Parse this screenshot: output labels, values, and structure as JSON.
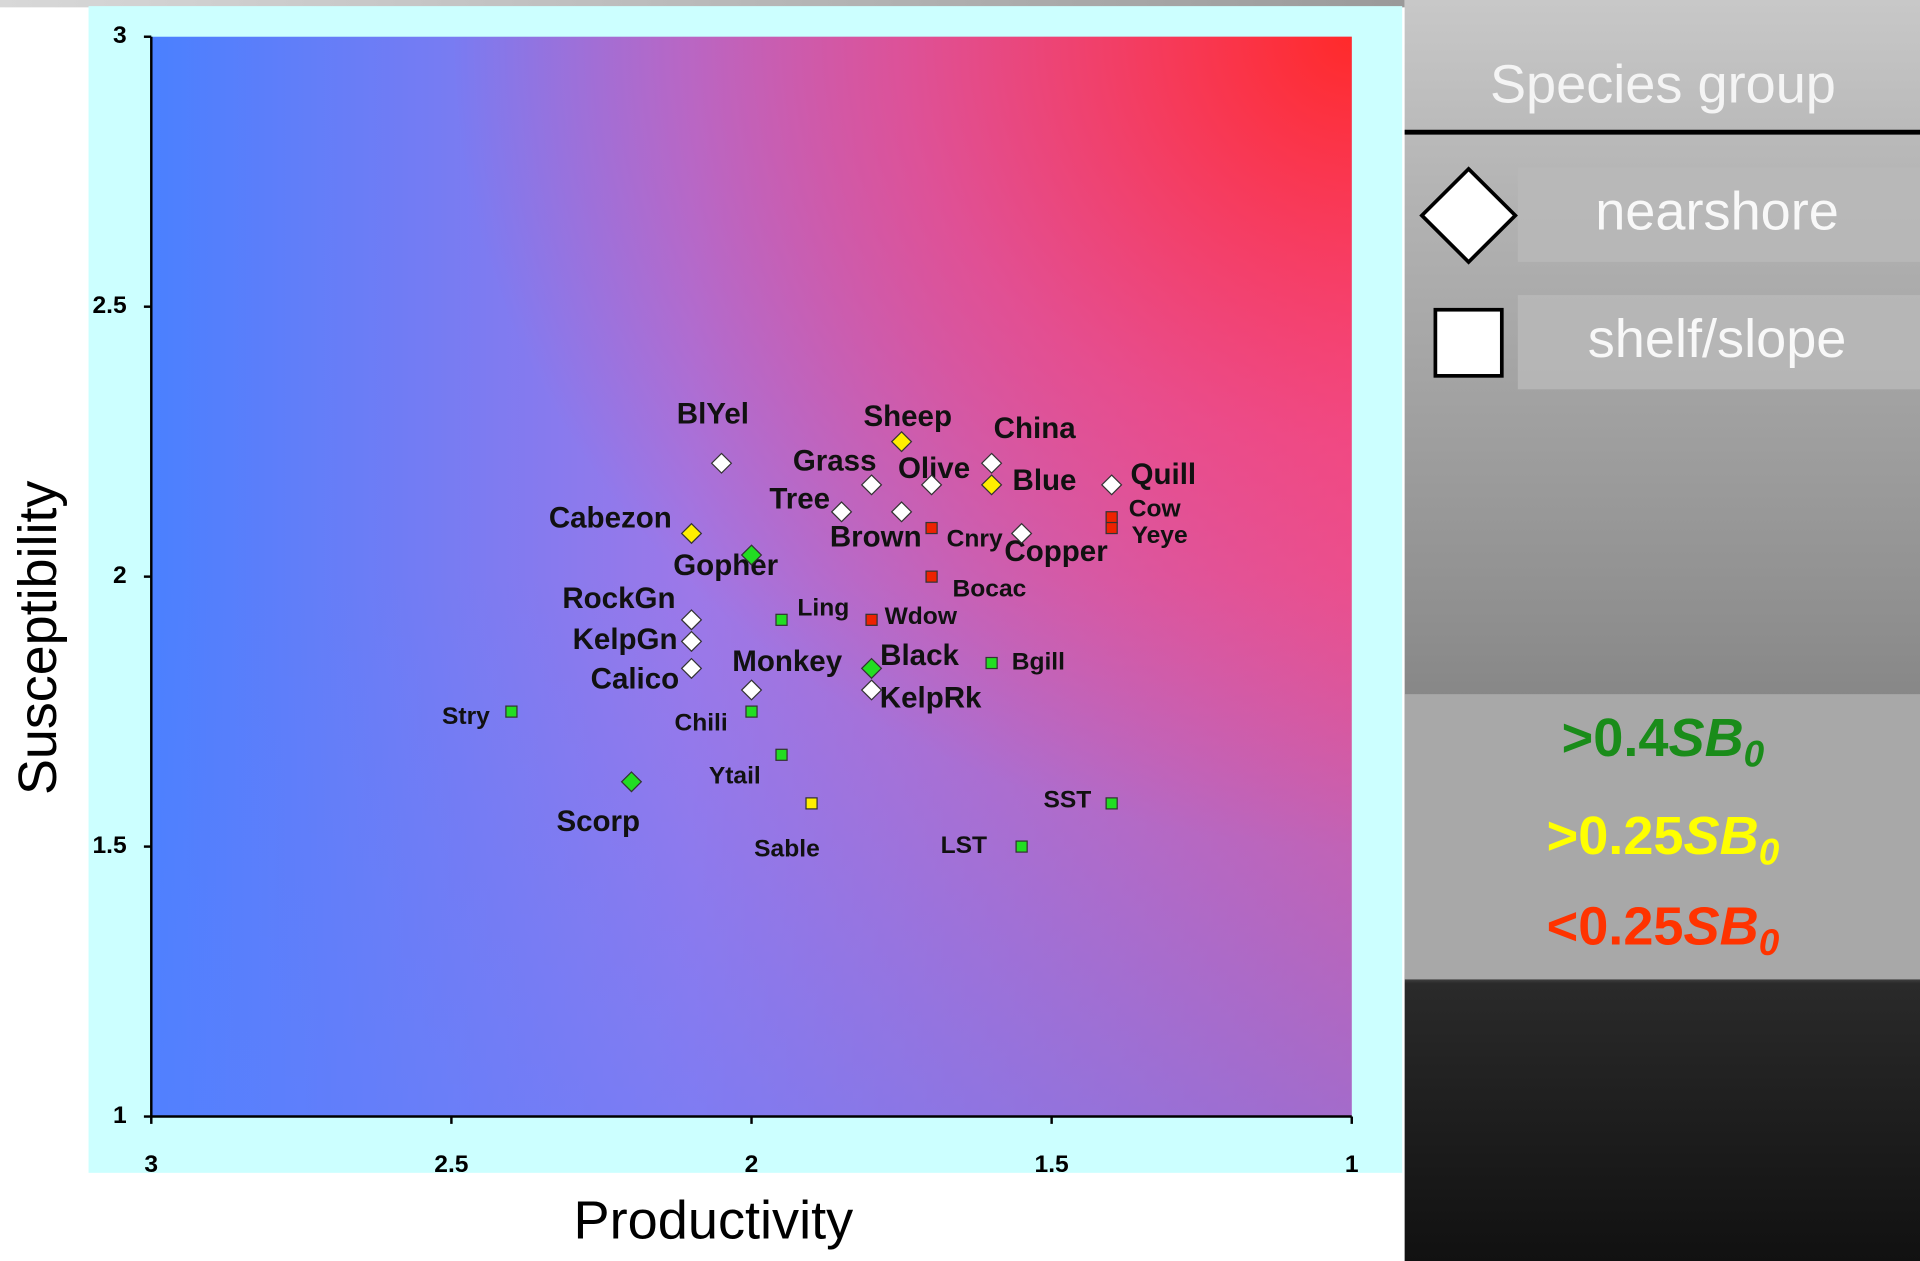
{
  "chart_data": {
    "type": "scatter",
    "xlabel": "Productivity",
    "ylabel": "Susceptibility",
    "xlim": [
      3,
      1
    ],
    "ylim": [
      1,
      3
    ],
    "xticks": [
      3,
      2.5,
      2,
      1.5,
      1
    ],
    "yticks": [
      1,
      1.5,
      2,
      2.5,
      3
    ],
    "legend_title": "Species group",
    "series": [
      {
        "name": "nearshore",
        "marker": "diamond",
        "color": "#ffffff",
        "points": [
          {
            "label": "BlYel",
            "x": 2.05,
            "y": 2.21,
            "color": "#ffffff"
          },
          {
            "label": "Sheep",
            "x": 1.75,
            "y": 2.25,
            "color": "#ffee00"
          },
          {
            "label": "China",
            "x": 1.6,
            "y": 2.21,
            "color": "#ffffff"
          },
          {
            "label": "Grass",
            "x": 1.8,
            "y": 2.17,
            "color": "#ffffff"
          },
          {
            "label": "Olive",
            "x": 1.7,
            "y": 2.17,
            "color": "#ffffff"
          },
          {
            "label": "Blue",
            "x": 1.6,
            "y": 2.17,
            "color": "#ffee00"
          },
          {
            "label": "Quill",
            "x": 1.4,
            "y": 2.17,
            "color": "#ffffff"
          },
          {
            "label": "Tree",
            "x": 1.85,
            "y": 2.12,
            "color": "#ffffff"
          },
          {
            "label": "Brown",
            "x": 1.75,
            "y": 2.12,
            "color": "#ffffff"
          },
          {
            "label": "Cabezon",
            "x": 2.1,
            "y": 2.08,
            "color": "#ffee00"
          },
          {
            "label": "Copper",
            "x": 1.55,
            "y": 2.08,
            "color": "#ffffff"
          },
          {
            "label": "Gopher",
            "x": 2.0,
            "y": 2.04,
            "color": "#22dd22"
          },
          {
            "label": "RockGn",
            "x": 2.1,
            "y": 1.92,
            "color": "#ffffff"
          },
          {
            "label": "KelpGn",
            "x": 2.1,
            "y": 1.88,
            "color": "#ffffff"
          },
          {
            "label": "Calico",
            "x": 2.1,
            "y": 1.83,
            "color": "#ffffff"
          },
          {
            "label": "Black",
            "x": 1.8,
            "y": 1.83,
            "color": "#22dd22"
          },
          {
            "label": "Monkey",
            "x": 2.0,
            "y": 1.79,
            "color": "#ffffff"
          },
          {
            "label": "KelpRk",
            "x": 1.8,
            "y": 1.79,
            "color": "#ffffff"
          },
          {
            "label": "Scorp",
            "x": 2.2,
            "y": 1.62,
            "color": "#22dd22"
          }
        ]
      },
      {
        "name": "shelf/slope",
        "marker": "square",
        "color": "#ffffff",
        "points": [
          {
            "label": "Cnry",
            "x": 1.7,
            "y": 2.09,
            "color": "#ee2200"
          },
          {
            "label": "Cow",
            "x": 1.4,
            "y": 2.11,
            "color": "#ee2200"
          },
          {
            "label": "Yeye",
            "x": 1.4,
            "y": 2.09,
            "color": "#ee2200"
          },
          {
            "label": "Bocac",
            "x": 1.7,
            "y": 2.0,
            "color": "#ee2200"
          },
          {
            "label": "Ling",
            "x": 1.95,
            "y": 1.92,
            "color": "#22dd22"
          },
          {
            "label": "Wdow",
            "x": 1.8,
            "y": 1.92,
            "color": "#ee2200"
          },
          {
            "label": "Bgill",
            "x": 1.6,
            "y": 1.84,
            "color": "#22dd22"
          },
          {
            "label": "Stry",
            "x": 2.4,
            "y": 1.75,
            "color": "#22dd22"
          },
          {
            "label": "Chili",
            "x": 2.0,
            "y": 1.75,
            "color": "#22dd22"
          },
          {
            "label": "Ytail",
            "x": 1.95,
            "y": 1.67,
            "color": "#22dd22"
          },
          {
            "label": "Sable",
            "x": 1.9,
            "y": 1.58,
            "color": "#ffee00"
          },
          {
            "label": "SST",
            "x": 1.4,
            "y": 1.58,
            "color": "#22dd22"
          },
          {
            "label": "LST",
            "x": 1.55,
            "y": 1.5,
            "color": "#22dd22"
          }
        ]
      }
    ],
    "status_legend": [
      {
        "prefix": ">0.4",
        "symbol": "SB",
        "subscript": "0",
        "color": "#1a8c1a"
      },
      {
        "prefix": ">0.25",
        "symbol": "SB",
        "subscript": "0",
        "color": "#ffff00"
      },
      {
        "prefix": "<0.25",
        "symbol": "SB",
        "subscript": "0",
        "color": "#ff3300"
      }
    ]
  }
}
